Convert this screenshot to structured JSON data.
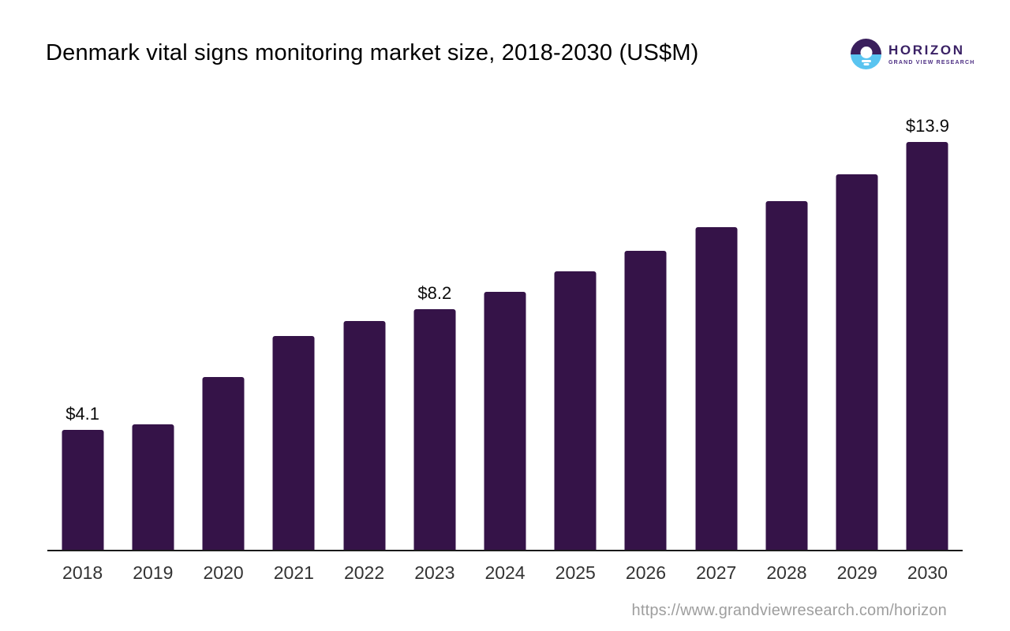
{
  "header": {
    "logo": {
      "name": "HORIZON",
      "subtitle": "GRAND VIEW RESEARCH",
      "mark_top_color": "#3a1f5c",
      "mark_bottom_color": "#59c4f0"
    }
  },
  "footer": {
    "url": "https://www.grandviewresearch.com/horizon"
  },
  "chart_data": {
    "type": "bar",
    "title": "Denmark vital signs monitoring market size, 2018-2030 (US$M)",
    "categories": [
      "2018",
      "2019",
      "2020",
      "2021",
      "2022",
      "2023",
      "2024",
      "2025",
      "2026",
      "2027",
      "2028",
      "2029",
      "2030"
    ],
    "values": [
      4.1,
      4.3,
      5.9,
      7.3,
      7.8,
      8.2,
      8.8,
      9.5,
      10.2,
      11.0,
      11.9,
      12.8,
      13.9
    ],
    "point_labels": [
      "$4.1",
      null,
      null,
      null,
      null,
      "$8.2",
      null,
      null,
      null,
      null,
      null,
      null,
      "$13.9"
    ],
    "xlabel": "",
    "ylabel": "",
    "ylim": [
      0,
      14.5
    ],
    "grid": false,
    "legend": false,
    "y_axis_shown": false,
    "bar_color": "#351348",
    "axis_color": "#1a1a1a",
    "tick_color": "#333333"
  }
}
